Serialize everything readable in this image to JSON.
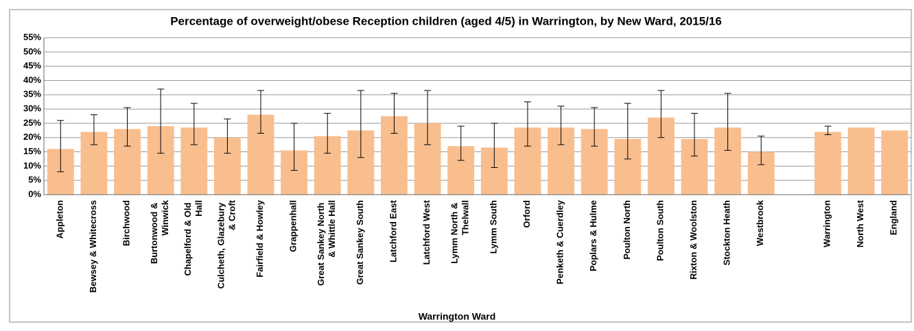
{
  "chart_data": {
    "type": "bar",
    "title": "Percentage of overweight/obese Reception children (aged 4/5) in Warrington, by New Ward, 2015/16",
    "x_label": "Warrington Ward",
    "categories": [
      "Appleton",
      "Bewsey & Whitecross",
      "Birchwood",
      "Burtonwood & Winwick",
      "Chapelford & Old Hall",
      "Culcheth, Glazebury & Croft",
      "Fairfield & Howley",
      "Grappenhall",
      "Great Sankey North & Whittle Hall",
      "Great Sankey South",
      "Latchford East",
      "Latchford West",
      "Lymm North & Thelwall",
      "Lymm South",
      "Orford",
      "Penketh & Cuerdley",
      "Poplars & Hulme",
      "Poulton North",
      "Poulton South",
      "Rixton & Woolston",
      "Stockton Heath",
      "Westbrook",
      null,
      "Warrington",
      "North West",
      "England"
    ],
    "values": [
      16,
      22,
      23,
      24,
      23.5,
      20,
      28,
      15.5,
      20.5,
      22.5,
      27.5,
      25,
      17,
      16.5,
      23.5,
      23.5,
      23,
      19.5,
      27,
      19.5,
      23.5,
      15,
      null,
      22,
      23.5,
      22.5
    ],
    "ci_lower": [
      8,
      17.5,
      17,
      14.5,
      17.5,
      14.5,
      21.5,
      8.5,
      14.5,
      13,
      21.5,
      17.5,
      12,
      9.5,
      17,
      17.5,
      17,
      12.5,
      20,
      13.5,
      15.5,
      10.5,
      null,
      21,
      null,
      null
    ],
    "ci_upper": [
      26,
      28,
      30.5,
      37,
      32,
      26.5,
      36.5,
      25,
      28.5,
      36.5,
      35.5,
      36.5,
      24,
      25,
      32.5,
      31,
      30.5,
      32,
      36.5,
      28.5,
      35.5,
      20.5,
      null,
      24,
      null,
      null
    ],
    "color": "#f9be8e",
    "ylim": [
      0,
      55
    ],
    "yticks": [
      {
        "value": 0,
        "label": "0%"
      },
      {
        "value": 5,
        "label": "5%"
      },
      {
        "value": 10,
        "label": "10%"
      },
      {
        "value": 15,
        "label": "15%"
      },
      {
        "value": 20,
        "label": "20%"
      },
      {
        "value": 25,
        "label": "25%"
      },
      {
        "value": 30,
        "label": "30%"
      },
      {
        "value": 35,
        "label": "35%"
      },
      {
        "value": 40,
        "label": "40%"
      },
      {
        "value": 45,
        "label": "45%"
      },
      {
        "value": 50,
        "label": "50%"
      },
      {
        "value": 55,
        "label": "55%"
      }
    ],
    "grid": true
  }
}
